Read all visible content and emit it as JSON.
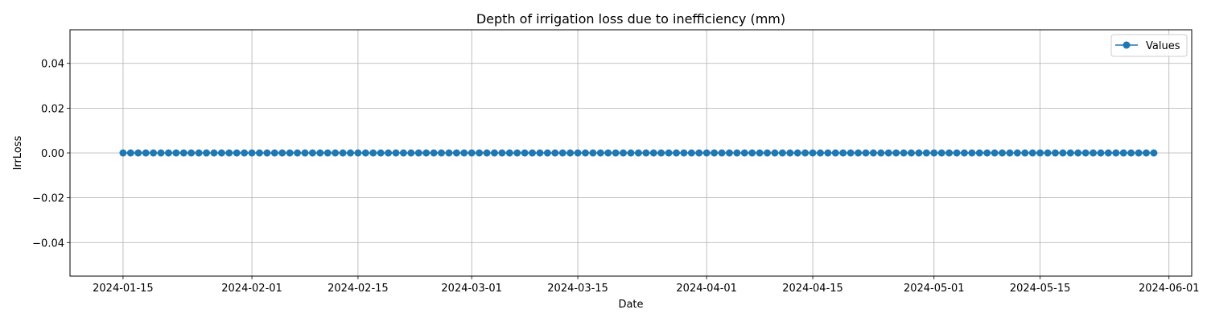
{
  "chart_data": {
    "type": "line",
    "title": "Depth of irrigation loss due to inefficiency (mm)",
    "xlabel": "Date",
    "ylabel": "IrrLoss",
    "x_range": [
      "2024-01-08",
      "2024-06-04"
    ],
    "ylim": [
      -0.055,
      0.055
    ],
    "grid": true,
    "legend_position": "top-right",
    "x_ticks": [
      "2024-01-15",
      "2024-02-01",
      "2024-02-15",
      "2024-03-01",
      "2024-03-15",
      "2024-04-01",
      "2024-04-15",
      "2024-05-01",
      "2024-05-15",
      "2024-06-01"
    ],
    "y_ticks": [
      0.04,
      0.02,
      0.0,
      -0.02,
      -0.04
    ],
    "y_tick_labels": [
      "0.04",
      "0.02",
      "0.00",
      "−0.02",
      "−0.04"
    ],
    "series": [
      {
        "name": "Values",
        "color": "#1f77b4",
        "marker": "circle",
        "x_start": "2024-01-15",
        "x_end": "2024-05-30",
        "x_step": "1 day",
        "value": 0.0
      }
    ]
  }
}
